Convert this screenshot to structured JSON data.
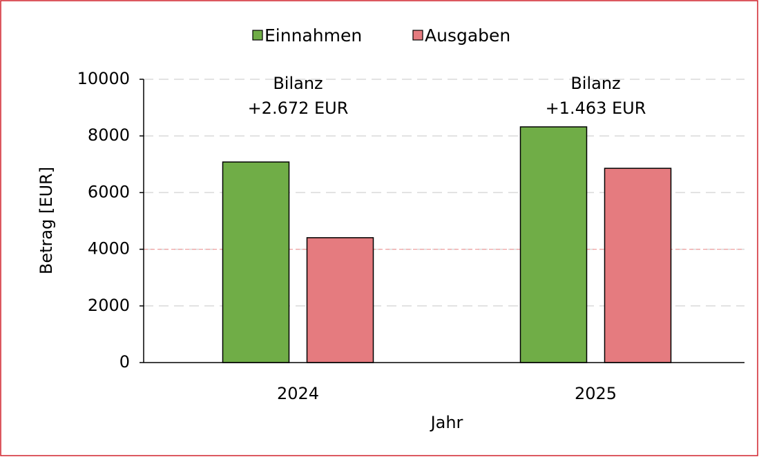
{
  "chart_data": {
    "type": "bar",
    "x_label": "Jahr",
    "y_label": "Betrag [EUR]",
    "categories": [
      "2024",
      "2025"
    ],
    "series": [
      {
        "name": "Einnahmen",
        "color": "#70ad47",
        "values": [
          7080,
          8320
        ]
      },
      {
        "name": "Ausgaben",
        "color": "#e57b7f",
        "values": [
          4408,
          6857
        ]
      }
    ],
    "annotations": [
      {
        "lines": [
          "Bilanz",
          "+2.672 EUR"
        ]
      },
      {
        "lines": [
          "Bilanz",
          "+1.463 EUR"
        ]
      }
    ],
    "reference_line": {
      "value": 4000,
      "color": "#f0a0a0"
    },
    "ylim": [
      0,
      10000
    ],
    "yticks": [
      0,
      2000,
      4000,
      6000,
      8000,
      10000
    ],
    "grid": true,
    "legend": "top"
  }
}
